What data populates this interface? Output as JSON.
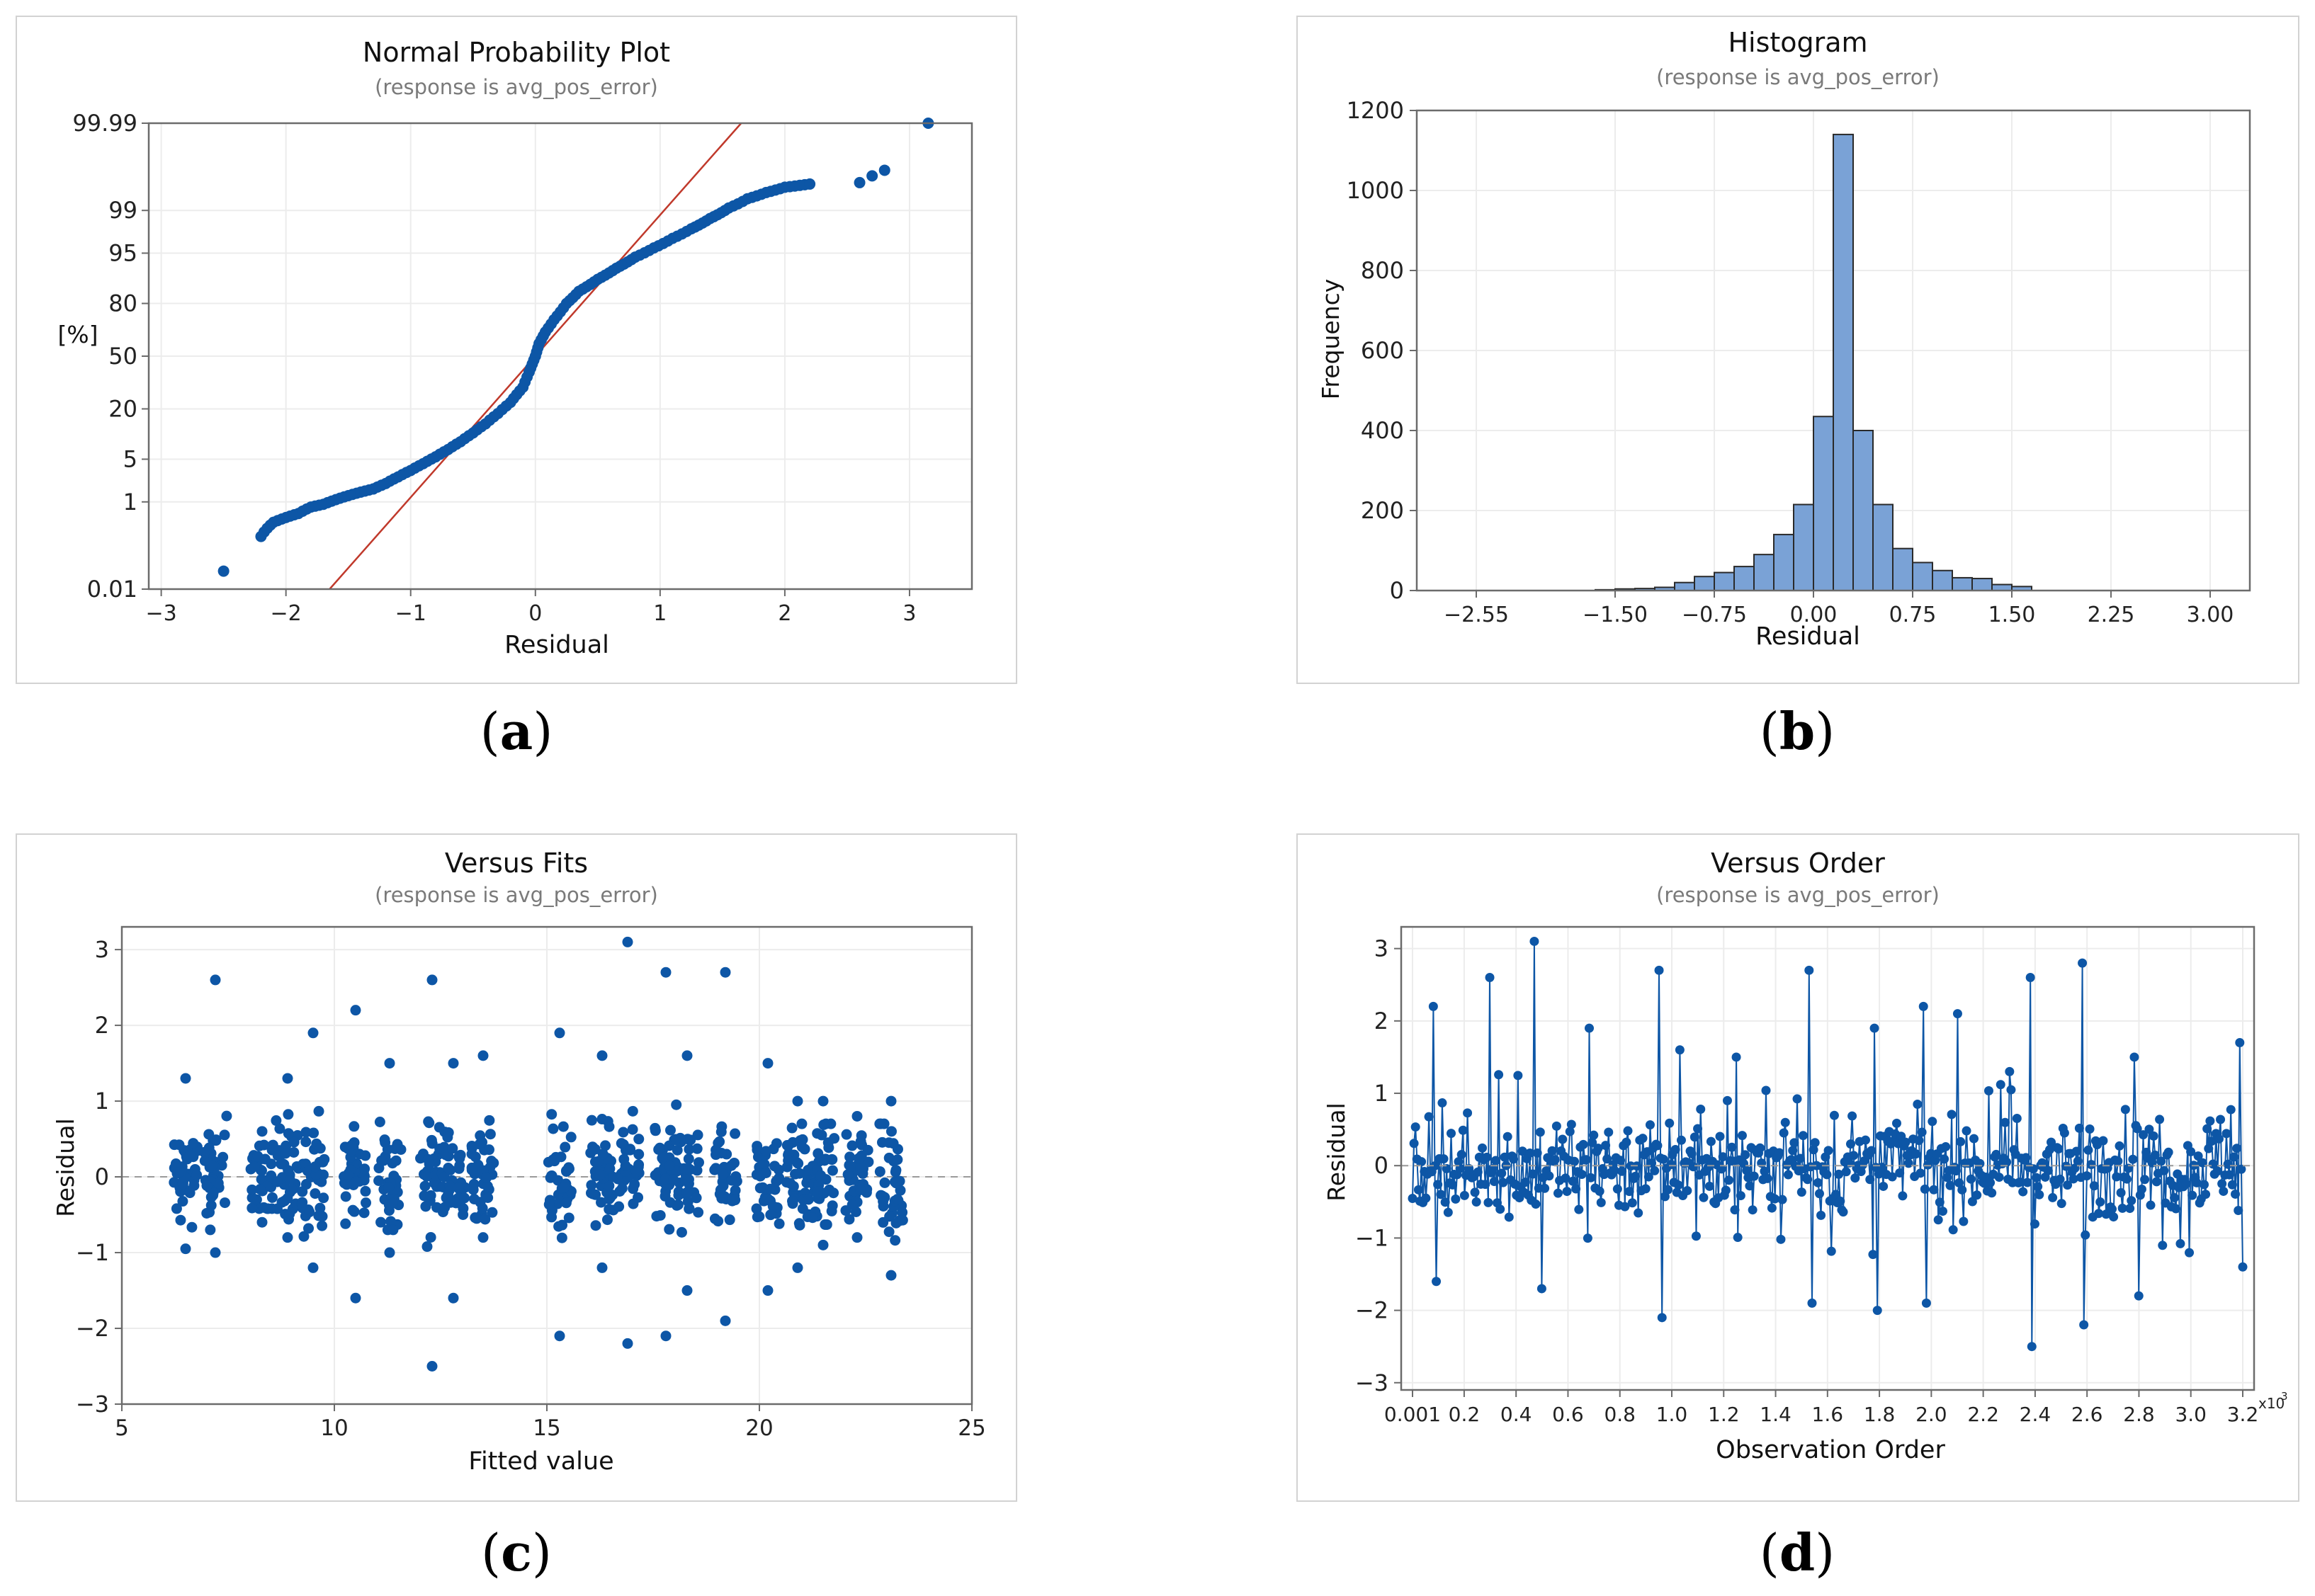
{
  "colors": {
    "point": "#0d56a6",
    "fit_line": "#c0392b",
    "bar_fill": "#7aa2d6",
    "bar_stroke": "#2a2a2a",
    "grid": "#ececec",
    "frame": "#6b6b6b"
  },
  "captions": [
    "a",
    "b",
    "c",
    "d"
  ],
  "chart_data": [
    {
      "type": "scatter",
      "title": "Normal Probability Plot",
      "subtitle": "(response is avg_pos_error)",
      "xlabel": "Residual",
      "ylabel": "[%]",
      "xlim": [
        -3.1,
        3.5
      ],
      "ylim_percent": [
        0.01,
        99.99
      ],
      "xticks": [
        "−3",
        "−2",
        "−1",
        "0",
        "1",
        "2",
        "3"
      ],
      "xtick_values": [
        -3,
        -2,
        -1,
        0,
        1,
        2,
        3
      ],
      "yticks": [
        "0.01",
        "1",
        "5",
        "20",
        "50",
        "80",
        "95",
        "99",
        "99.99"
      ],
      "ytick_values": [
        0.01,
        1,
        5,
        20,
        50,
        80,
        95,
        99,
        99.99
      ],
      "fit_line": {
        "x": [
          -1.65,
          1.65
        ],
        "percent": [
          0.01,
          99.99
        ]
      },
      "series": [
        {
          "name": "residuals",
          "points": [
            [
              -2.5,
              0.03
            ],
            [
              -2.2,
              0.2
            ],
            [
              -2.15,
              0.3
            ],
            [
              -2.1,
              0.4
            ],
            [
              -1.9,
              0.6
            ],
            [
              -1.8,
              0.8
            ],
            [
              -1.7,
              0.9
            ],
            [
              -1.6,
              1.1
            ],
            [
              -1.5,
              1.3
            ],
            [
              -1.4,
              1.5
            ],
            [
              -1.3,
              1.7
            ],
            [
              -1.2,
              2.1
            ],
            [
              -1.1,
              2.7
            ],
            [
              -1.0,
              3.4
            ],
            [
              -0.9,
              4.3
            ],
            [
              -0.8,
              5.4
            ],
            [
              -0.7,
              6.8
            ],
            [
              -0.6,
              8.6
            ],
            [
              -0.5,
              11
            ],
            [
              -0.4,
              14
            ],
            [
              -0.3,
              18
            ],
            [
              -0.2,
              23
            ],
            [
              -0.1,
              31
            ],
            [
              -0.05,
              40
            ],
            [
              0.0,
              50
            ],
            [
              0.03,
              58
            ],
            [
              0.08,
              65
            ],
            [
              0.15,
              72
            ],
            [
              0.25,
              80
            ],
            [
              0.35,
              85
            ],
            [
              0.5,
              89
            ],
            [
              0.65,
              92
            ],
            [
              0.8,
              94.3
            ],
            [
              0.95,
              95.8
            ],
            [
              1.1,
              97
            ],
            [
              1.25,
              97.9
            ],
            [
              1.4,
              98.6
            ],
            [
              1.55,
              99.1
            ],
            [
              1.7,
              99.4
            ],
            [
              1.85,
              99.55
            ],
            [
              2.0,
              99.65
            ],
            [
              2.2,
              99.7
            ],
            [
              2.6,
              99.72
            ],
            [
              2.7,
              99.8
            ],
            [
              2.8,
              99.85
            ],
            [
              3.15,
              99.99
            ]
          ]
        }
      ]
    },
    {
      "type": "bar",
      "title": "Histogram",
      "subtitle": "(response is avg_pos_error)",
      "xlabel": "Residual",
      "ylabel": "Frequency",
      "xlim": [
        -3.0,
        3.3
      ],
      "ylim": [
        0,
        1200
      ],
      "xticks": [
        "−2.55",
        "−1.50",
        "−0.75",
        "0.00",
        "0.75",
        "1.50",
        "2.25",
        "3.00"
      ],
      "xtick_values": [
        -2.55,
        -1.5,
        -0.75,
        0.0,
        0.75,
        1.5,
        2.25,
        3.0
      ],
      "yticks": [
        "0",
        "200",
        "400",
        "600",
        "800",
        "1000",
        "1200"
      ],
      "ytick_values": [
        0,
        200,
        400,
        600,
        800,
        1000,
        1200
      ],
      "bin_width": 0.15,
      "bins": [
        -1.65,
        -1.5,
        -1.35,
        -1.2,
        -1.05,
        -0.9,
        -0.75,
        -0.6,
        -0.45,
        -0.3,
        -0.15,
        0.0,
        0.15,
        0.3,
        0.45,
        0.6,
        0.75,
        0.9,
        1.05,
        1.2,
        1.35,
        1.5
      ],
      "values": [
        2,
        4,
        5,
        8,
        20,
        35,
        45,
        60,
        90,
        140,
        215,
        435,
        1140,
        400,
        215,
        105,
        70,
        50,
        32,
        30,
        15,
        10
      ]
    },
    {
      "type": "scatter",
      "title": "Versus Fits",
      "subtitle": "(response is avg_pos_error)",
      "xlabel": "Fitted value",
      "ylabel": "Residual",
      "xlim": [
        5,
        25
      ],
      "ylim": [
        -3,
        3.3
      ],
      "xticks": [
        "5",
        "10",
        "15",
        "20",
        "25"
      ],
      "xtick_values": [
        5,
        10,
        15,
        20,
        25
      ],
      "yticks": [
        "−3",
        "−2",
        "−1",
        "0",
        "1",
        "2",
        "3"
      ],
      "ytick_values": [
        -3,
        -2,
        -1,
        0,
        1,
        2,
        3
      ],
      "reference_line": 0,
      "columns": [
        {
          "x": 6.5,
          "min": -0.95,
          "max": 1.3
        },
        {
          "x": 7.2,
          "min": -1.0,
          "max": 2.6
        },
        {
          "x": 8.3,
          "min": -0.6,
          "max": 0.6
        },
        {
          "x": 8.9,
          "min": -0.8,
          "max": 1.3
        },
        {
          "x": 9.5,
          "min": -1.2,
          "max": 1.9
        },
        {
          "x": 10.5,
          "min": -1.6,
          "max": 2.2
        },
        {
          "x": 11.3,
          "min": -1.0,
          "max": 1.5
        },
        {
          "x": 12.3,
          "min": -2.5,
          "max": 2.6
        },
        {
          "x": 12.8,
          "min": -1.6,
          "max": 1.5
        },
        {
          "x": 13.5,
          "min": -0.8,
          "max": 1.6
        },
        {
          "x": 15.3,
          "min": -2.1,
          "max": 1.9
        },
        {
          "x": 16.3,
          "min": -1.2,
          "max": 1.6
        },
        {
          "x": 16.9,
          "min": -2.2,
          "max": 3.1
        },
        {
          "x": 17.8,
          "min": -2.1,
          "max": 2.7
        },
        {
          "x": 18.3,
          "min": -1.5,
          "max": 1.6
        },
        {
          "x": 19.2,
          "min": -1.9,
          "max": 2.7
        },
        {
          "x": 20.2,
          "min": -1.5,
          "max": 1.5
        },
        {
          "x": 20.9,
          "min": -1.2,
          "max": 1.0
        },
        {
          "x": 21.5,
          "min": -0.9,
          "max": 1.0
        },
        {
          "x": 22.3,
          "min": -0.8,
          "max": 0.8
        },
        {
          "x": 23.1,
          "min": -1.3,
          "max": 1.0
        }
      ]
    },
    {
      "type": "line",
      "title": "Versus Order",
      "subtitle": "(response is avg_pos_error)",
      "xlabel": "Observation Order",
      "ylabel": "Residual",
      "xlim": [
        0.001,
        3.2
      ],
      "ylim": [
        -3.1,
        3.3
      ],
      "xticks": [
        "0.001",
        "0.2",
        "0.4",
        "0.6",
        "0.8",
        "1.0",
        "1.2",
        "1.4",
        "1.6",
        "1.8",
        "2.0",
        "2.2",
        "2.4",
        "2.6",
        "2.8",
        "3.0",
        "3.2"
      ],
      "xtick_values": [
        0.001,
        0.2,
        0.4,
        0.6,
        0.8,
        1.0,
        1.2,
        1.4,
        1.6,
        1.8,
        2.0,
        2.2,
        2.4,
        2.6,
        2.8,
        3.0,
        3.2
      ],
      "x_multiplier": "x10",
      "x_multiplier_exp": "3",
      "yticks": [
        "−3",
        "−2",
        "−1",
        "0",
        "1",
        "2",
        "3"
      ],
      "ytick_values": [
        -3,
        -2,
        -1,
        0,
        1,
        2,
        3
      ],
      "reference_line": 0,
      "spikes": [
        [
          0.08,
          2.2
        ],
        [
          0.09,
          -1.6
        ],
        [
          0.3,
          2.6
        ],
        [
          0.47,
          3.1
        ],
        [
          0.5,
          -1.7
        ],
        [
          0.68,
          1.9
        ],
        [
          0.95,
          2.7
        ],
        [
          0.96,
          -2.1
        ],
        [
          1.03,
          1.6
        ],
        [
          1.25,
          1.5
        ],
        [
          1.53,
          2.7
        ],
        [
          1.54,
          -1.9
        ],
        [
          1.78,
          1.9
        ],
        [
          1.79,
          -2.0
        ],
        [
          1.97,
          2.2
        ],
        [
          1.98,
          -1.9
        ],
        [
          2.1,
          2.1
        ],
        [
          2.38,
          2.6
        ],
        [
          2.39,
          -2.5
        ],
        [
          2.58,
          2.8
        ],
        [
          2.59,
          -2.2
        ],
        [
          2.78,
          1.5
        ],
        [
          2.8,
          -1.8
        ],
        [
          3.19,
          1.7
        ],
        [
          3.2,
          -1.4
        ]
      ]
    }
  ]
}
